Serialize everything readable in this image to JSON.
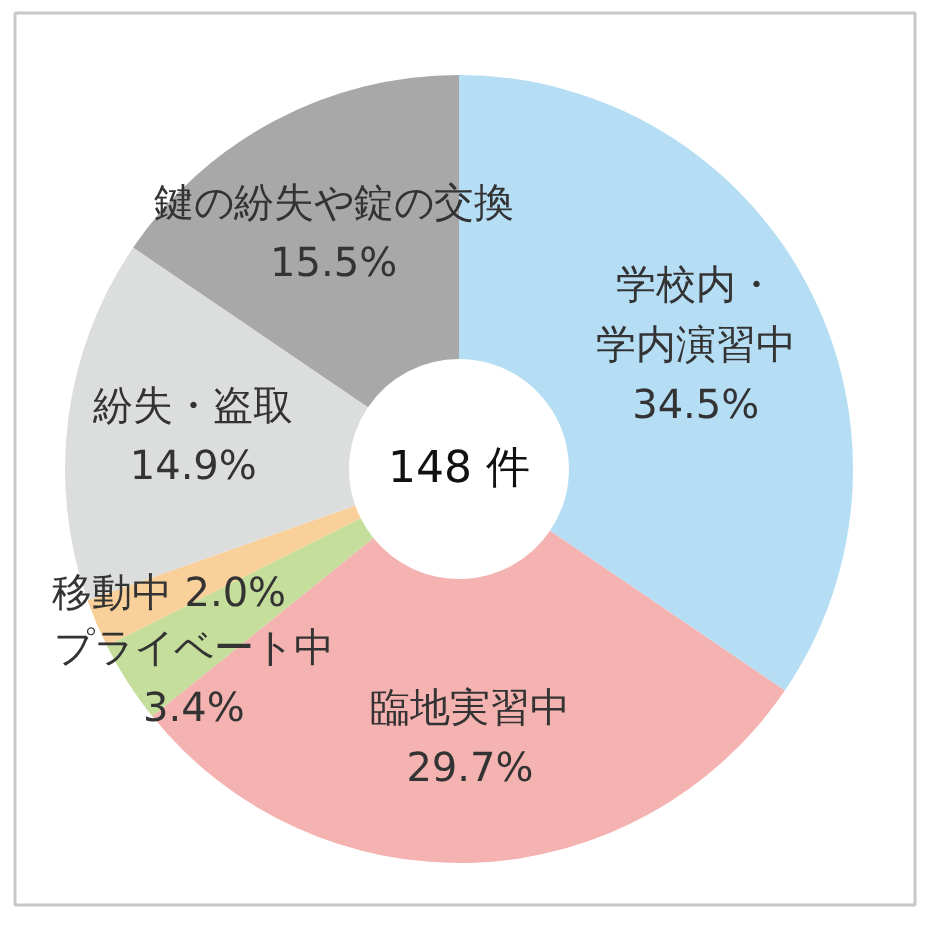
{
  "chart_data": {
    "type": "donut",
    "categories": [
      "学校内・学内演習中",
      "臨地実習中",
      "プライベート中",
      "移動中",
      "紛失・盗取",
      "鍵の紛失や錠の交換"
    ],
    "values": [
      34.5,
      29.7,
      3.4,
      2.0,
      14.9,
      15.5
    ],
    "colors": [
      "#b5def5",
      "#f4b2b0",
      "#c5de9c",
      "#f9d09a",
      "#dcdddd",
      "#a8a8a8"
    ],
    "value_labels": [
      "34.5%",
      "29.7%",
      "3.4%",
      "2.0%",
      "14.9%",
      "15.5%"
    ],
    "annotations": [
      "148 件"
    ]
  }
}
